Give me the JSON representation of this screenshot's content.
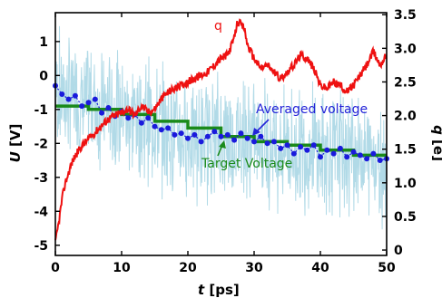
{
  "chart_data": {
    "type": "line",
    "x_axis": {
      "label_italic": "t",
      "label_unit": " [ps]",
      "range": [
        0,
        50
      ],
      "ticks": [
        "0",
        "10",
        "20",
        "30",
        "40",
        "50"
      ]
    },
    "y_left": {
      "label_italic": "U",
      "label_unit": " [V]",
      "range": [
        -5.3,
        1.85
      ],
      "ticks": [
        "-5",
        "-4",
        "-3",
        "-2",
        "-1",
        "0",
        "1"
      ]
    },
    "y_right": {
      "label_italic": "q",
      "label_unit": " [e]",
      "range": [
        -0.08,
        3.53
      ],
      "ticks": [
        "0",
        "0.5",
        "1.0",
        "1.5",
        "2.0",
        "2.5",
        "3.0",
        "3.5"
      ]
    },
    "grid": false,
    "annotations": {
      "q_label": "q",
      "averaged_label": "Averaged voltage",
      "target_label": "Target Voltage"
    },
    "colors": {
      "q": "#ee1111",
      "raw_voltage": "#add8e6",
      "averaged": "#1a1adc",
      "target": "#1a8a1a",
      "annot_blue": "#2323d8",
      "annot_green": "#1a8a1a"
    },
    "series": [
      {
        "name": "q",
        "axis": "right",
        "x": [
          0,
          0.5,
          1,
          1.5,
          2,
          2.5,
          3,
          4,
          5,
          6,
          7,
          8,
          9,
          10,
          11,
          12,
          13,
          14,
          15,
          16,
          17,
          18,
          19,
          20,
          21,
          22,
          23,
          24,
          25,
          26,
          27,
          27.5,
          28,
          28.5,
          29,
          30,
          31,
          32,
          33,
          34,
          35,
          36,
          37,
          38,
          39,
          40,
          41,
          42,
          43,
          44,
          45,
          46,
          47,
          48,
          48.5,
          49,
          50
        ],
        "values": [
          0.1,
          0.4,
          0.75,
          1.0,
          1.15,
          1.3,
          1.4,
          1.55,
          1.65,
          1.75,
          1.85,
          1.95,
          2.0,
          2.05,
          2.1,
          2.0,
          2.15,
          2.05,
          2.1,
          2.25,
          2.35,
          2.4,
          2.45,
          2.5,
          2.55,
          2.6,
          2.65,
          2.75,
          2.85,
          2.9,
          3.15,
          3.4,
          3.35,
          3.3,
          3.05,
          2.85,
          2.7,
          2.75,
          2.65,
          2.55,
          2.65,
          2.75,
          2.9,
          2.85,
          2.7,
          2.45,
          2.4,
          2.5,
          2.45,
          2.35,
          2.45,
          2.6,
          2.75,
          2.95,
          2.85,
          2.75,
          2.9
        ]
      },
      {
        "name": "Averaged voltage",
        "axis": "left",
        "x": [
          0,
          1,
          2,
          3,
          4,
          5,
          6,
          7,
          8,
          9,
          10,
          11,
          12,
          13,
          14,
          15,
          16,
          17,
          18,
          19,
          20,
          21,
          22,
          23,
          24,
          25,
          26,
          27,
          28,
          29,
          30,
          31,
          32,
          33,
          34,
          35,
          36,
          37,
          38,
          39,
          40,
          41,
          42,
          43,
          44,
          45,
          46,
          47,
          48,
          49,
          50
        ],
        "values": [
          -0.3,
          -0.55,
          -0.7,
          -0.6,
          -0.9,
          -0.8,
          -0.7,
          -1.1,
          -0.95,
          -1.2,
          -1.05,
          -1.25,
          -1.15,
          -1.4,
          -1.25,
          -1.5,
          -1.6,
          -1.55,
          -1.75,
          -1.7,
          -1.85,
          -1.75,
          -1.95,
          -1.8,
          -1.65,
          -1.8,
          -1.75,
          -1.9,
          -1.7,
          -1.85,
          -1.95,
          -1.8,
          -2.0,
          -1.95,
          -2.15,
          -2.05,
          -2.3,
          -2.1,
          -2.2,
          -2.05,
          -2.4,
          -2.2,
          -2.3,
          -2.15,
          -2.4,
          -2.25,
          -2.35,
          -2.45,
          -2.3,
          -2.5,
          -2.45
        ]
      },
      {
        "name": "Target Voltage",
        "axis": "left",
        "x": [
          0,
          5,
          5,
          10,
          10,
          15,
          15,
          20,
          20,
          25,
          25,
          30,
          30,
          35,
          35,
          40,
          40,
          45,
          45,
          50
        ],
        "values": [
          -0.9,
          -0.9,
          -1.0,
          -1.0,
          -1.15,
          -1.15,
          -1.35,
          -1.35,
          -1.55,
          -1.55,
          -1.8,
          -1.8,
          -1.95,
          -1.95,
          -2.05,
          -2.05,
          -2.2,
          -2.2,
          -2.35,
          -2.35
        ]
      }
    ]
  }
}
